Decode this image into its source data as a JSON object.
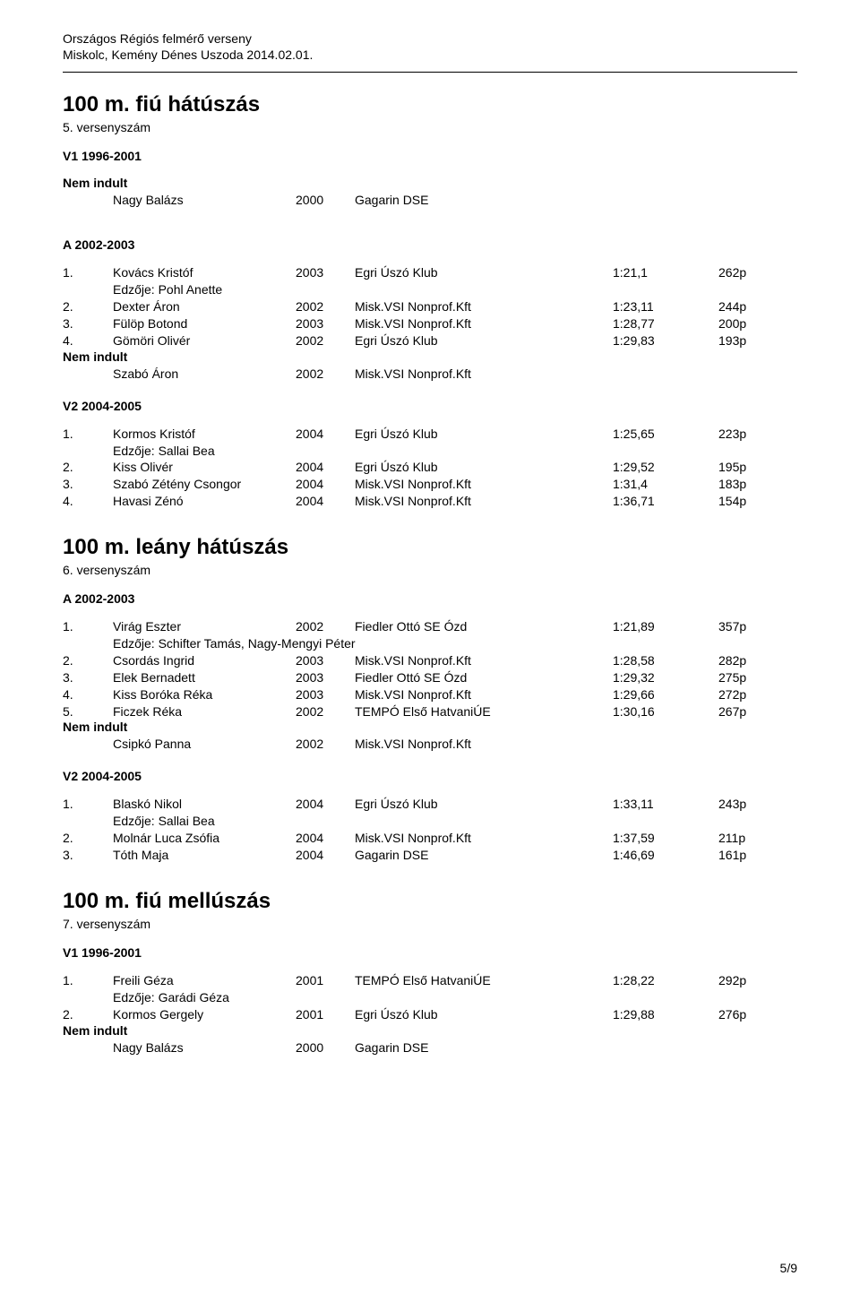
{
  "header": {
    "line1": "Országos Régiós felmérő verseny",
    "line2": "Miskolc, Kemény Dénes Uszoda  2014.02.01."
  },
  "footer": {
    "text": "5/9"
  },
  "events": [
    {
      "title": "100 m. fiú hátúszás",
      "subnum": "5. versenyszám",
      "categories": [
        {
          "label": "V1  1996-2001",
          "preNote": "Nem indult",
          "preRows": [
            {
              "rank": "",
              "name": "Nagy Balázs",
              "year": "2000",
              "club": "Gagarin DSE",
              "time": "",
              "pts": ""
            }
          ],
          "rows": []
        },
        {
          "label": "A  2002-2003",
          "rows": [
            {
              "rank": "1.",
              "name": "Kovács Kristóf",
              "year": "2003",
              "club": "Egri Úszó Klub",
              "time": "1:21,1",
              "pts": "262p",
              "coach": "Edzője: Pohl Anette"
            },
            {
              "rank": "2.",
              "name": "Dexter Áron",
              "year": "2002",
              "club": "Misk.VSI Nonprof.Kft",
              "time": "1:23,11",
              "pts": "244p"
            },
            {
              "rank": "3.",
              "name": "Fülöp Botond",
              "year": "2003",
              "club": "Misk.VSI Nonprof.Kft",
              "time": "1:28,77",
              "pts": "200p"
            },
            {
              "rank": "4.",
              "name": "Gömöri Olivér",
              "year": "2002",
              "club": "Egri Úszó Klub",
              "time": "1:29,83",
              "pts": "193p"
            }
          ],
          "postNote": "Nem indult",
          "postRows": [
            {
              "rank": "",
              "name": "Szabó Áron",
              "year": "2002",
              "club": "Misk.VSI Nonprof.Kft",
              "time": "",
              "pts": ""
            }
          ]
        },
        {
          "label": "V2  2004-2005",
          "rows": [
            {
              "rank": "1.",
              "name": "Kormos Kristóf",
              "year": "2004",
              "club": "Egri Úszó Klub",
              "time": "1:25,65",
              "pts": "223p",
              "coach": "Edzője: Sallai Bea"
            },
            {
              "rank": "2.",
              "name": "Kiss Olivér",
              "year": "2004",
              "club": "Egri Úszó Klub",
              "time": "1:29,52",
              "pts": "195p"
            },
            {
              "rank": "3.",
              "name": "Szabó Zétény Csongor",
              "year": "2004",
              "club": "Misk.VSI Nonprof.Kft",
              "time": "1:31,4",
              "pts": "183p"
            },
            {
              "rank": "4.",
              "name": "Havasi Zénó",
              "year": "2004",
              "club": "Misk.VSI Nonprof.Kft",
              "time": "1:36,71",
              "pts": "154p"
            }
          ]
        }
      ]
    },
    {
      "title": "100 m. leány hátúszás",
      "subnum": "6. versenyszám",
      "categories": [
        {
          "label": "A  2002-2003",
          "rows": [
            {
              "rank": "1.",
              "name": "Virág Eszter",
              "year": "2002",
              "club": "Fiedler Ottó SE Ózd",
              "time": "1:21,89",
              "pts": "357p",
              "coach": "Edzője: Schifter Tamás, Nagy-Mengyi Péter"
            },
            {
              "rank": "2.",
              "name": "Csordás Ingrid",
              "year": "2003",
              "club": "Misk.VSI Nonprof.Kft",
              "time": "1:28,58",
              "pts": "282p"
            },
            {
              "rank": "3.",
              "name": "Elek Bernadett",
              "year": "2003",
              "club": "Fiedler Ottó SE Ózd",
              "time": "1:29,32",
              "pts": "275p"
            },
            {
              "rank": "4.",
              "name": "Kiss Boróka Réka",
              "year": "2003",
              "club": "Misk.VSI Nonprof.Kft",
              "time": "1:29,66",
              "pts": "272p"
            },
            {
              "rank": "5.",
              "name": "Ficzek Réka",
              "year": "2002",
              "club": "TEMPÓ Első HatvaniÚE",
              "time": "1:30,16",
              "pts": "267p"
            }
          ],
          "postNote": "Nem indult",
          "postRows": [
            {
              "rank": "",
              "name": "Csipkó Panna",
              "year": "2002",
              "club": "Misk.VSI Nonprof.Kft",
              "time": "",
              "pts": ""
            }
          ]
        },
        {
          "label": "V2  2004-2005",
          "rows": [
            {
              "rank": "1.",
              "name": "Blaskó Nikol",
              "year": "2004",
              "club": "Egri Úszó Klub",
              "time": "1:33,11",
              "pts": "243p",
              "coach": "Edzője: Sallai Bea"
            },
            {
              "rank": "2.",
              "name": "Molnár Luca Zsófia",
              "year": "2004",
              "club": "Misk.VSI Nonprof.Kft",
              "time": "1:37,59",
              "pts": "211p"
            },
            {
              "rank": "3.",
              "name": "Tóth Maja",
              "year": "2004",
              "club": "Gagarin DSE",
              "time": "1:46,69",
              "pts": "161p"
            }
          ]
        }
      ]
    },
    {
      "title": "100 m. fiú mellúszás",
      "subnum": "7. versenyszám",
      "categories": [
        {
          "label": "V1  1996-2001",
          "rows": [
            {
              "rank": "1.",
              "name": "Freili Géza",
              "year": "2001",
              "club": "TEMPÓ Első HatvaniÚE",
              "time": "1:28,22",
              "pts": "292p",
              "coach": "Edzője: Garádi Géza"
            },
            {
              "rank": "2.",
              "name": "Kormos Gergely",
              "year": "2001",
              "club": "Egri Úszó Klub",
              "time": "1:29,88",
              "pts": "276p"
            }
          ],
          "postNote": "Nem indult",
          "postRows": [
            {
              "rank": "",
              "name": "Nagy Balázs",
              "year": "2000",
              "club": "Gagarin DSE",
              "time": "",
              "pts": ""
            }
          ]
        }
      ]
    }
  ]
}
